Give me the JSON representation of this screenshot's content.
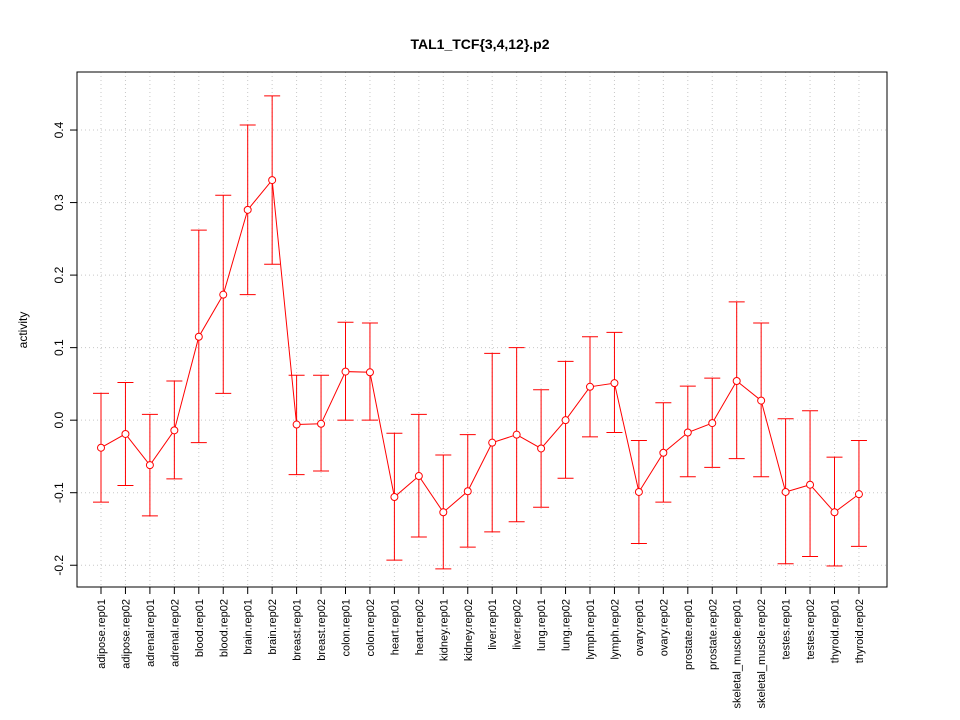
{
  "chart_data": {
    "type": "line",
    "title": "TAL1_TCF{3,4,12}.p2",
    "xlabel": "",
    "ylabel": "activity",
    "ylim": [
      -0.23,
      0.48
    ],
    "yticks": [
      -0.2,
      -0.1,
      0.0,
      0.1,
      0.2,
      0.3,
      0.4
    ],
    "ytick_labels": [
      "-0.2",
      "-0.1",
      "0.0",
      "0.1",
      "0.2",
      "0.3",
      "0.4"
    ],
    "grid": true,
    "series_color": "#ff0000",
    "grid_color": "#c8c8c8",
    "categories": [
      "adipose.rep01",
      "adipose.rep02",
      "adrenal.rep01",
      "adrenal.rep02",
      "blood.rep01",
      "blood.rep02",
      "brain.rep01",
      "brain.rep02",
      "breast.rep01",
      "breast.rep02",
      "colon.rep01",
      "colon.rep02",
      "heart.rep01",
      "heart.rep02",
      "kidney.rep01",
      "kidney.rep02",
      "liver.rep01",
      "liver.rep02",
      "lung.rep01",
      "lung.rep02",
      "lymph.rep01",
      "lymph.rep02",
      "ovary.rep01",
      "ovary.rep02",
      "prostate.rep01",
      "prostate.rep02",
      "skeletal_muscle.rep01",
      "skeletal_muscle.rep02",
      "testes.rep01",
      "testes.rep02",
      "thyroid.rep01",
      "thyroid.rep02"
    ],
    "values": [
      -0.038,
      -0.019,
      -0.062,
      -0.014,
      0.115,
      0.173,
      0.29,
      0.331,
      -0.006,
      -0.005,
      0.067,
      0.066,
      -0.106,
      -0.077,
      -0.127,
      -0.098,
      -0.031,
      -0.02,
      -0.039,
      0.0,
      0.046,
      0.051,
      -0.099,
      -0.045,
      -0.017,
      -0.004,
      0.054,
      0.027,
      -0.099,
      -0.089,
      -0.127,
      -0.102
    ],
    "upper": [
      0.037,
      0.052,
      0.008,
      0.054,
      0.262,
      0.31,
      0.407,
      0.447,
      0.062,
      0.062,
      0.135,
      0.134,
      -0.018,
      0.008,
      -0.048,
      -0.02,
      0.092,
      0.1,
      0.042,
      0.081,
      0.115,
      0.121,
      -0.028,
      0.024,
      0.047,
      0.058,
      0.163,
      0.134,
      0.002,
      0.013,
      -0.051,
      -0.028
    ],
    "lower": [
      -0.113,
      -0.09,
      -0.132,
      -0.081,
      -0.031,
      0.037,
      0.173,
      0.215,
      -0.075,
      -0.07,
      0.0,
      0.0,
      -0.193,
      -0.161,
      -0.205,
      -0.175,
      -0.154,
      -0.14,
      -0.12,
      -0.08,
      -0.023,
      -0.017,
      -0.17,
      -0.113,
      -0.078,
      -0.065,
      -0.053,
      -0.078,
      -0.198,
      -0.188,
      -0.201,
      -0.174
    ]
  }
}
